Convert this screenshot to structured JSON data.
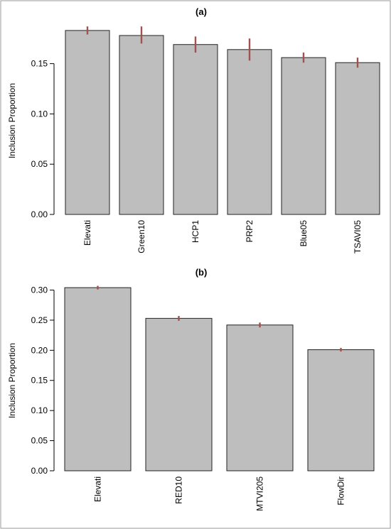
{
  "figure": {
    "frame_color": "#9a9a9a"
  },
  "chart_data": [
    {
      "type": "bar",
      "title": "(a)",
      "ylabel": "Inclusion Proportion",
      "categories": [
        "Elevati",
        "Green10",
        "HCP1",
        "PRP2",
        "Blue05",
        "TSAVI05"
      ],
      "values": [
        0.183,
        0.178,
        0.169,
        0.164,
        0.156,
        0.151
      ],
      "error_low": [
        0.179,
        0.17,
        0.161,
        0.153,
        0.151,
        0.146
      ],
      "error_high": [
        0.187,
        0.187,
        0.177,
        0.175,
        0.161,
        0.156
      ],
      "ylim": [
        0,
        0.19
      ],
      "yticks": [
        0.0,
        0.05,
        0.1,
        0.15
      ],
      "ytick_labels": [
        "0.00",
        "0.05",
        "0.10",
        "0.15"
      ],
      "bar_color": "#bebebe",
      "error_color": "#a0524f"
    },
    {
      "type": "bar",
      "title": "(b)",
      "ylabel": "Inclusion Proportion",
      "categories": [
        "Elevati",
        "RED10",
        "MTVI205",
        "FlowDir"
      ],
      "values": [
        0.304,
        0.253,
        0.242,
        0.201
      ],
      "error_low": [
        0.301,
        0.249,
        0.238,
        0.198
      ],
      "error_high": [
        0.307,
        0.257,
        0.246,
        0.204
      ],
      "ylim": [
        0,
        0.31
      ],
      "yticks": [
        0.0,
        0.05,
        0.1,
        0.15,
        0.2,
        0.25,
        0.3
      ],
      "ytick_labels": [
        "0.00",
        "0.05",
        "0.10",
        "0.15",
        "0.20",
        "0.25",
        "0.30"
      ],
      "bar_color": "#bebebe",
      "error_color": "#a0524f"
    }
  ]
}
